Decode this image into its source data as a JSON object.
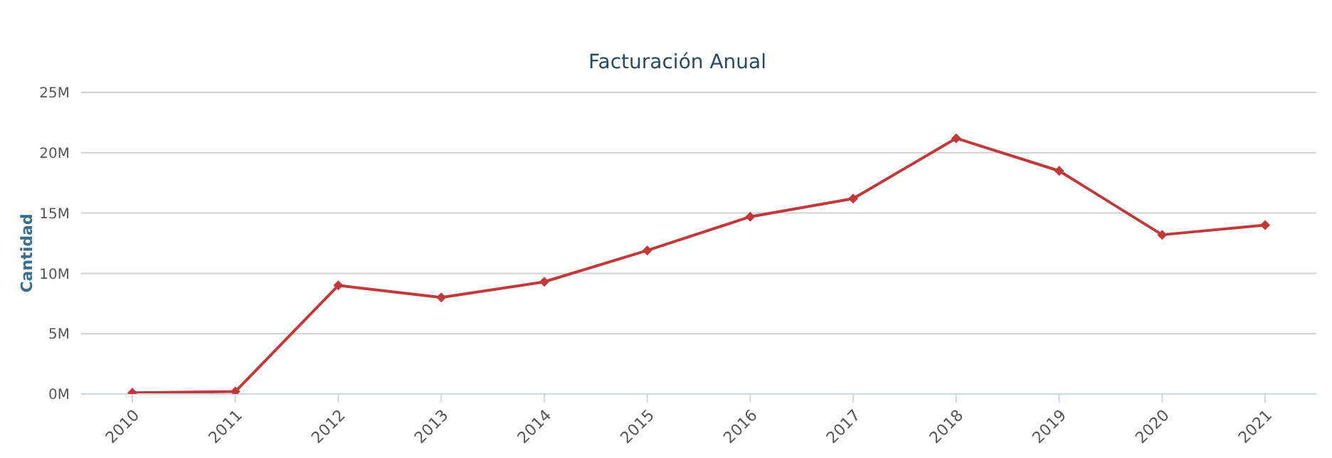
{
  "chart_data": {
    "type": "line",
    "title": "Facturación Anual",
    "ylabel": "Cantidad",
    "categories": [
      "2010",
      "2011",
      "2012",
      "2013",
      "2014",
      "2015",
      "2016",
      "2017",
      "2018",
      "2019",
      "2020",
      "2021"
    ],
    "series": [
      {
        "color": "#c0393b",
        "values": [
          0.1,
          0.2,
          9.0,
          8.0,
          9.3,
          11.9,
          14.7,
          16.2,
          21.2,
          18.5,
          13.2,
          14.0
        ]
      }
    ],
    "ylim": [
      0,
      25
    ],
    "yticks": [
      {
        "value": 0,
        "label": "0M"
      },
      {
        "value": 5,
        "label": "5M"
      },
      {
        "value": 10,
        "label": "10M"
      },
      {
        "value": 15,
        "label": "15M"
      },
      {
        "value": 20,
        "label": "20M"
      },
      {
        "value": 25,
        "label": "25M"
      }
    ],
    "grid": "y",
    "marker": "diamond",
    "line_style": "solid",
    "legend": false
  }
}
